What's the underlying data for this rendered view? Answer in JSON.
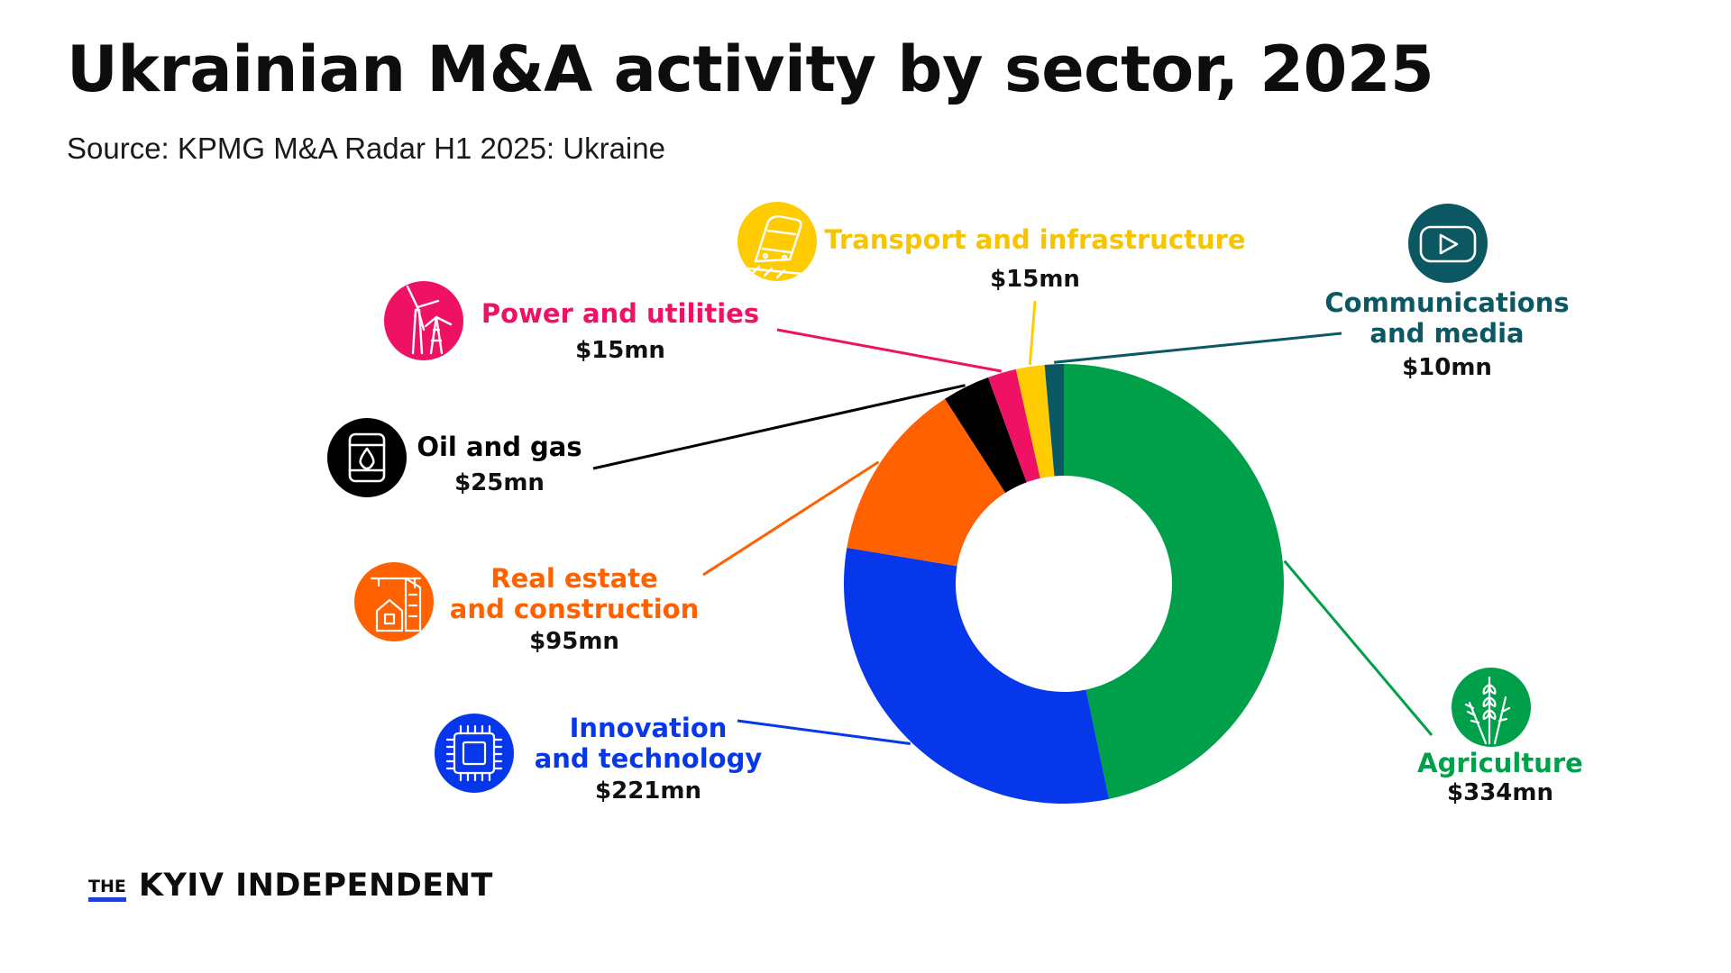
{
  "header": {
    "title": "Ukrainian M&A activity by sector, 2025",
    "subtitle": "Source: KPMG M&A Radar H1 2025: Ukraine"
  },
  "brand": {
    "the": "THE",
    "name": "KYIV INDEPENDENT",
    "accent": "#1f3fd8"
  },
  "chart_data": {
    "type": "pie",
    "donut": true,
    "title": "Ukrainian M&A activity by sector, 2025",
    "unit": "$mn",
    "slices": [
      {
        "label": "Agriculture",
        "value": 334,
        "value_label": "$334mn",
        "color": "#00a04b",
        "icon": "wheat-icon"
      },
      {
        "label": "Innovation and technology",
        "value": 221,
        "value_label": "$221mn",
        "color": "#0637ea",
        "icon": "chip-icon"
      },
      {
        "label": "Real estate and construction",
        "value": 95,
        "value_label": "$95mn",
        "color": "#ff6100",
        "icon": "construction-crane-icon"
      },
      {
        "label": "Oil and gas",
        "value": 25,
        "value_label": "$25mn",
        "color": "#000000",
        "icon": "oil-barrel-icon"
      },
      {
        "label": "Power and utilities",
        "value": 15,
        "value_label": "$15mn",
        "color": "#ee1164",
        "icon": "wind-turbine-icon"
      },
      {
        "label": "Transport and infrastructure",
        "value": 15,
        "value_label": "$15mn",
        "color": "#fecc00",
        "icon": "train-icon"
      },
      {
        "label": "Communications and media",
        "value": 10,
        "value_label": "$10mn",
        "color": "#0b5863",
        "icon": "video-play-icon"
      }
    ]
  }
}
